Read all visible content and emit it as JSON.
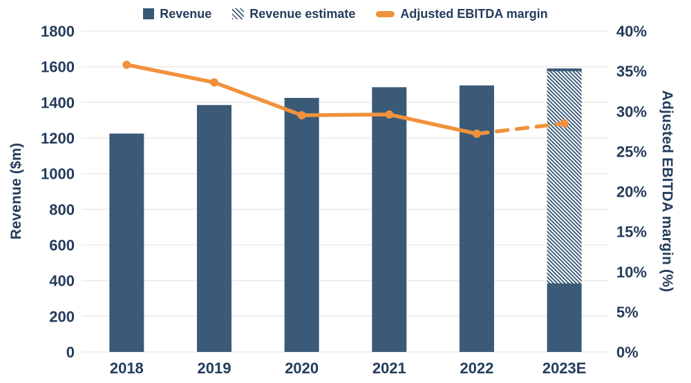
{
  "colors": {
    "navy": "#3A5A78",
    "orange": "#F0923C",
    "text_navy": "#243C5C",
    "gridline": "#E8E8E8",
    "background": "#FFFFFF"
  },
  "legend": {
    "revenue_label": "Revenue",
    "revenue_estimate_label": "Revenue estimate",
    "margin_label": "Adjusted EBITDA margin"
  },
  "chart_data": {
    "type": "bar+line combo",
    "categories": [
      "2018",
      "2019",
      "2020",
      "2021",
      "2022",
      "2023E"
    ],
    "series": [
      {
        "name": "Revenue",
        "type": "bar",
        "axis": "left",
        "color": "#3A5A78",
        "values": [
          1225,
          1385,
          1425,
          1485,
          1495,
          385
        ]
      },
      {
        "name": "Revenue estimate",
        "type": "bar-hatched",
        "axis": "left",
        "stacked_on": "Revenue",
        "color": "#3A5A78",
        "values": [
          0,
          0,
          0,
          0,
          0,
          1205
        ],
        "total_2023E": 1590
      },
      {
        "name": "Adjusted EBITDA margin",
        "type": "line",
        "axis": "right",
        "color": "#F0923C",
        "values": [
          35.8,
          33.6,
          29.5,
          29.6,
          27.2,
          28.5
        ],
        "dashed_from_category": "2022",
        "last_point_estimated": true
      }
    ],
    "left_axis": {
      "label": "Revenue ($m)",
      "min": 0,
      "max": 1800,
      "step": 200,
      "tick_labels": [
        "0",
        "200",
        "400",
        "600",
        "800",
        "1000",
        "1200",
        "1400",
        "1600",
        "1800"
      ]
    },
    "right_axis": {
      "label": "Adjusted EBITDA margin (%)",
      "min": 0,
      "max": 40,
      "step": 5,
      "tick_labels": [
        "0%",
        "5%",
        "10%",
        "15%",
        "20%",
        "25%",
        "30%",
        "35%",
        "40%"
      ]
    },
    "grid": "horizontal",
    "legend_position": "top"
  }
}
